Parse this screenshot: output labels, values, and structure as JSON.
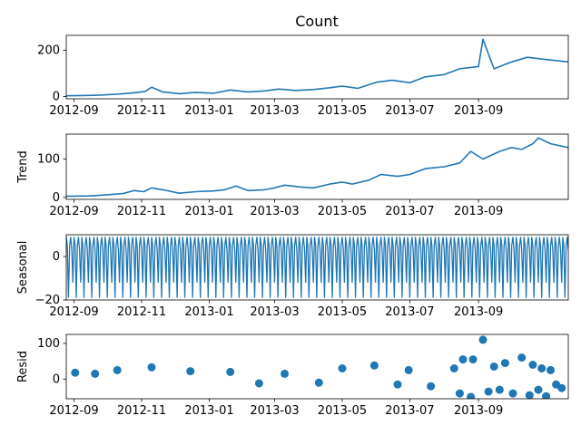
{
  "chart_data": {
    "type": "line",
    "title": "Count",
    "x_range": [
      "2012-08-25",
      "2013-11-21"
    ],
    "x_ticks": [
      "2012-09",
      "2012-11",
      "2013-01",
      "2013-03",
      "2013-05",
      "2013-07",
      "2013-09"
    ],
    "panels": [
      {
        "name": "observed",
        "ylabel": "",
        "kind": "line",
        "ylim": [
          -10,
          265
        ],
        "yticks": [
          0,
          200
        ],
        "points": [
          [
            "2012-08-25",
            3
          ],
          [
            "2012-09-10",
            4
          ],
          [
            "2012-09-25",
            6
          ],
          [
            "2012-10-10",
            10
          ],
          [
            "2012-10-25",
            16
          ],
          [
            "2012-11-04",
            22
          ],
          [
            "2012-11-10",
            40
          ],
          [
            "2012-11-20",
            20
          ],
          [
            "2012-12-05",
            12
          ],
          [
            "2012-12-20",
            18
          ],
          [
            "2013-01-05",
            14
          ],
          [
            "2013-01-20",
            28
          ],
          [
            "2013-02-05",
            20
          ],
          [
            "2013-02-20",
            24
          ],
          [
            "2013-03-05",
            32
          ],
          [
            "2013-03-20",
            26
          ],
          [
            "2013-04-05",
            30
          ],
          [
            "2013-04-20",
            38
          ],
          [
            "2013-05-01",
            45
          ],
          [
            "2013-05-15",
            35
          ],
          [
            "2013-06-01",
            62
          ],
          [
            "2013-06-15",
            70
          ],
          [
            "2013-07-01",
            60
          ],
          [
            "2013-07-15",
            85
          ],
          [
            "2013-08-01",
            95
          ],
          [
            "2013-08-15",
            120
          ],
          [
            "2013-09-01",
            130
          ],
          [
            "2013-09-05",
            248
          ],
          [
            "2013-09-15",
            120
          ],
          [
            "2013-10-01",
            150
          ],
          [
            "2013-10-15",
            170
          ],
          [
            "2013-11-01",
            160
          ],
          [
            "2013-11-21",
            150
          ]
        ]
      },
      {
        "name": "trend",
        "ylabel": "Trend",
        "kind": "line",
        "ylim": [
          -5,
          165
        ],
        "yticks": [
          0,
          100
        ],
        "points": [
          [
            "2012-08-25",
            3
          ],
          [
            "2012-09-15",
            4
          ],
          [
            "2012-10-01",
            7
          ],
          [
            "2012-10-15",
            10
          ],
          [
            "2012-10-25",
            18
          ],
          [
            "2012-11-03",
            15
          ],
          [
            "2012-11-10",
            25
          ],
          [
            "2012-11-20",
            20
          ],
          [
            "2012-12-05",
            11
          ],
          [
            "2012-12-20",
            15
          ],
          [
            "2013-01-05",
            17
          ],
          [
            "2013-01-15",
            20
          ],
          [
            "2013-01-25",
            30
          ],
          [
            "2013-02-05",
            18
          ],
          [
            "2013-02-20",
            20
          ],
          [
            "2013-03-01",
            25
          ],
          [
            "2013-03-10",
            32
          ],
          [
            "2013-03-25",
            27
          ],
          [
            "2013-04-05",
            25
          ],
          [
            "2013-04-20",
            35
          ],
          [
            "2013-05-01",
            40
          ],
          [
            "2013-05-10",
            35
          ],
          [
            "2013-05-25",
            45
          ],
          [
            "2013-06-05",
            60
          ],
          [
            "2013-06-20",
            55
          ],
          [
            "2013-07-01",
            60
          ],
          [
            "2013-07-15",
            75
          ],
          [
            "2013-08-01",
            80
          ],
          [
            "2013-08-15",
            90
          ],
          [
            "2013-08-25",
            120
          ],
          [
            "2013-09-05",
            100
          ],
          [
            "2013-09-20",
            120
          ],
          [
            "2013-10-01",
            130
          ],
          [
            "2013-10-10",
            125
          ],
          [
            "2013-10-20",
            140
          ],
          [
            "2013-10-25",
            155
          ],
          [
            "2013-11-05",
            140
          ],
          [
            "2013-11-21",
            130
          ]
        ]
      },
      {
        "name": "seasonal",
        "ylabel": "Seasonal",
        "kind": "periodic",
        "ylim": [
          -20,
          10
        ],
        "yticks": [
          -20,
          0
        ],
        "period_days": 7,
        "pattern": [
          9,
          5,
          -19,
          5,
          9,
          3,
          -12
        ]
      },
      {
        "name": "resid",
        "ylabel": "Resid",
        "kind": "scatter",
        "ylim": [
          -55,
          125
        ],
        "yticks": [
          0,
          100
        ],
        "points": [
          [
            "2012-09-02",
            18
          ],
          [
            "2012-09-20",
            15
          ],
          [
            "2012-10-10",
            25
          ],
          [
            "2012-11-10",
            33
          ],
          [
            "2012-12-15",
            22
          ],
          [
            "2013-01-20",
            20
          ],
          [
            "2013-03-10",
            15
          ],
          [
            "2013-05-01",
            30
          ],
          [
            "2013-05-30",
            38
          ],
          [
            "2013-06-30",
            25
          ],
          [
            "2013-08-10",
            30
          ],
          [
            "2013-08-18",
            55
          ],
          [
            "2013-08-27",
            55
          ],
          [
            "2013-09-05",
            110
          ],
          [
            "2013-09-15",
            35
          ],
          [
            "2013-09-25",
            45
          ],
          [
            "2013-10-10",
            60
          ],
          [
            "2013-10-20",
            40
          ],
          [
            "2013-10-28",
            30
          ],
          [
            "2013-11-05",
            25
          ],
          [
            "2013-08-15",
            -40
          ],
          [
            "2013-08-25",
            -50
          ],
          [
            "2013-09-10",
            -35
          ],
          [
            "2013-09-20",
            -30
          ],
          [
            "2013-10-02",
            -40
          ],
          [
            "2013-10-17",
            -45
          ],
          [
            "2013-10-25",
            -30
          ],
          [
            "2013-11-01",
            -48
          ],
          [
            "2013-11-15",
            -25
          ],
          [
            "2013-07-20",
            -20
          ],
          [
            "2013-06-20",
            -15
          ],
          [
            "2013-11-10",
            -15
          ],
          [
            "2013-02-15",
            -12
          ],
          [
            "2013-04-10",
            -10
          ]
        ]
      }
    ]
  }
}
